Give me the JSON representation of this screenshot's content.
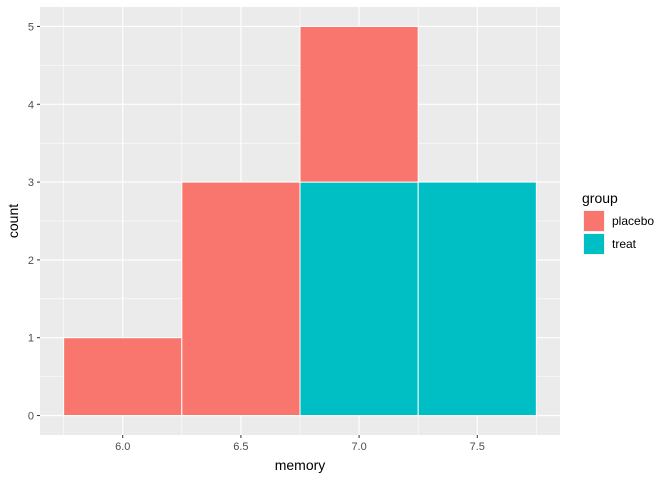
{
  "chart_data": {
    "type": "bar",
    "stacked": true,
    "bin_width": 0.5,
    "bins": [
      6.0,
      6.5,
      7.0,
      7.5
    ],
    "series": [
      {
        "name": "placebo",
        "color": "#F8766D",
        "values": [
          1,
          3,
          2,
          0
        ]
      },
      {
        "name": "treat",
        "color": "#00BFC4",
        "values": [
          0,
          0,
          3,
          3
        ]
      }
    ],
    "xlabel": "memory",
    "ylabel": "count",
    "xlim": [
      5.65,
      7.85
    ],
    "ylim": [
      -0.25,
      5.25
    ],
    "x_ticks": [
      6.0,
      6.5,
      7.0,
      7.5
    ],
    "x_tick_labels": [
      "6.0",
      "6.5",
      "7.0",
      "7.5"
    ],
    "y_ticks": [
      0,
      1,
      2,
      3,
      4,
      5
    ],
    "y_tick_labels": [
      "0",
      "1",
      "2",
      "3",
      "4",
      "5"
    ],
    "x_minor_ticks": [
      5.75,
      6.25,
      6.75,
      7.25,
      7.75
    ],
    "y_minor_ticks": [
      0.5,
      1.5,
      2.5,
      3.5,
      4.5
    ],
    "grid": true,
    "panel_background": "#EBEBEB",
    "legend": {
      "title": "group",
      "position": "right"
    }
  }
}
